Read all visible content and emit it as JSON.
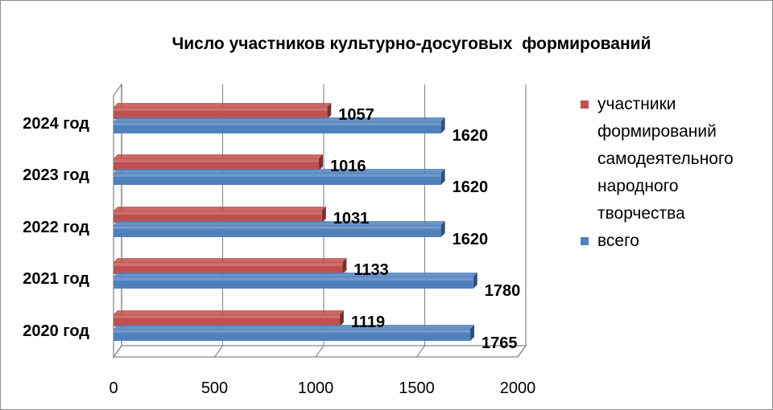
{
  "chart_data": {
    "type": "bar",
    "orientation": "horizontal",
    "title": "Число участников культурно-досуговых  формирований",
    "categories": [
      "2020 год",
      "2021 год",
      "2022 год",
      "2023 год",
      "2024 год"
    ],
    "series": [
      {
        "name": "участники формирований самодеятельного народного творчества",
        "color": "#c0504d",
        "values": [
          1119,
          1133,
          1031,
          1016,
          1057
        ]
      },
      {
        "name": "всего",
        "color": "#4f81bd",
        "values": [
          1765,
          1780,
          1620,
          1620,
          1620
        ]
      }
    ],
    "xlim": [
      0,
      2000
    ],
    "xticks": [
      "0",
      "500",
      "1000",
      "1500",
      "2000"
    ],
    "grid": true,
    "legend": "right",
    "style": "3d"
  }
}
